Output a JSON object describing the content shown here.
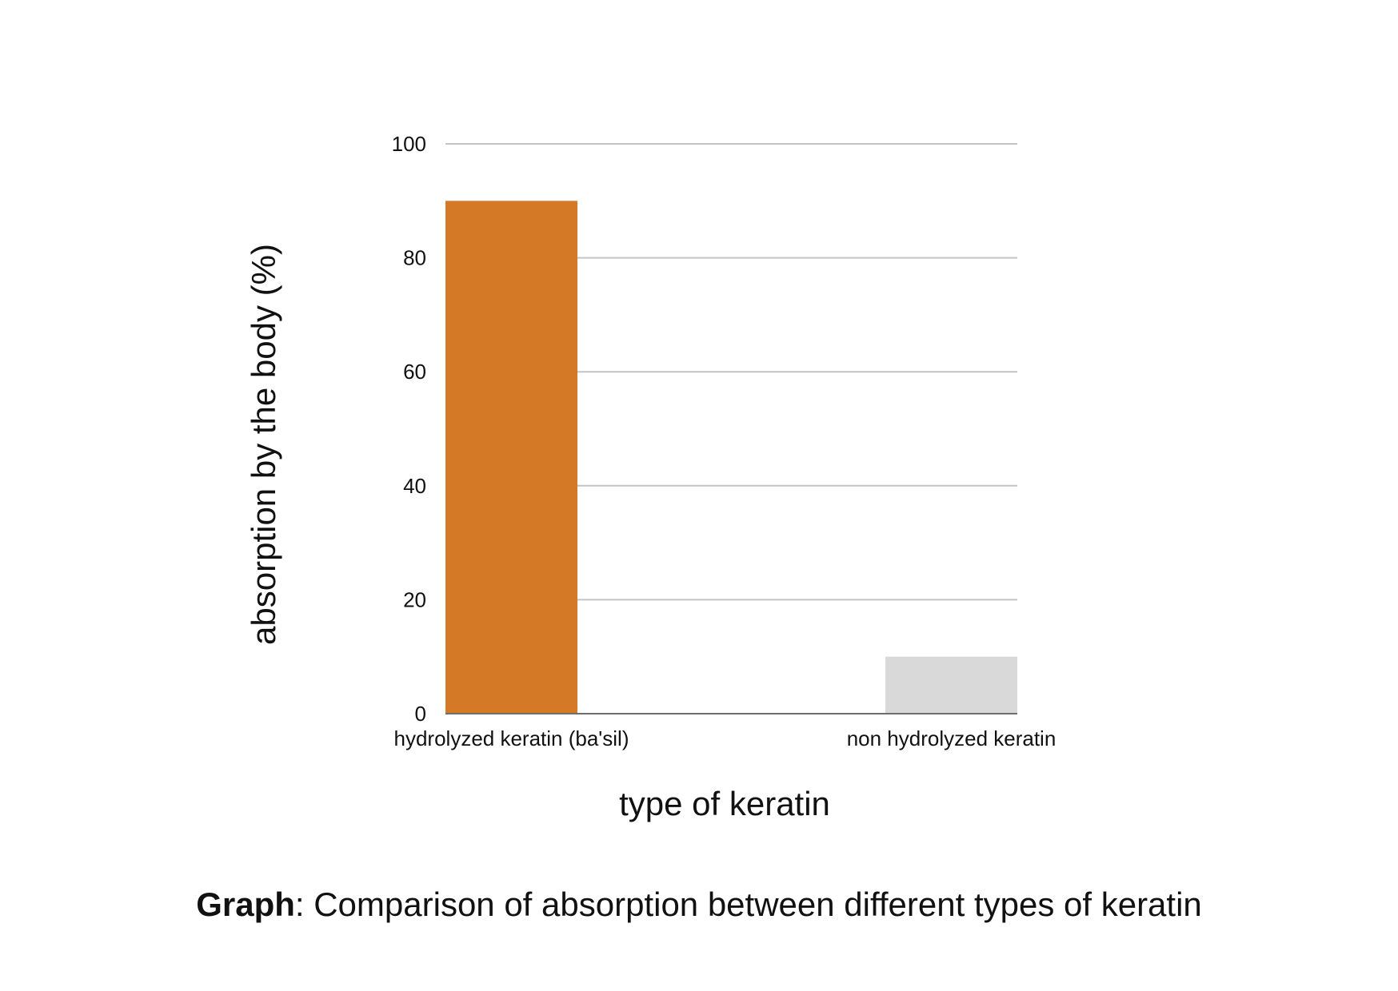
{
  "chart_data": {
    "type": "bar",
    "categories": [
      "hydrolyzed keratin (ba'sil)",
      "non hydrolyzed keratin"
    ],
    "values": [
      90,
      10
    ],
    "colors": [
      "#d47a27",
      "#d9d9d9"
    ],
    "xlabel": "type of keratin",
    "ylabel": "absorption by the body (%)",
    "ylim": [
      0,
      100
    ],
    "yticks": [
      "0",
      "20",
      "40",
      "60",
      "80",
      "100"
    ],
    "grid": true,
    "legend": "none"
  },
  "caption": {
    "prefix": "Graph",
    "text": ": Comparison of absorption between different types of keratin"
  }
}
